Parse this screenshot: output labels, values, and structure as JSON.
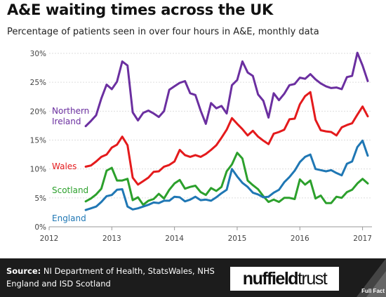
{
  "header": {
    "title": "A&E waiting times across the UK",
    "subtitle": "Percentage of patients seen in over four hours in A&E, monthly data"
  },
  "footer": {
    "source_label": "Source:",
    "source_text": "NI Department of Health, StatsWales, NHS England and ISD Scotland",
    "logo_part1": "nuffield",
    "logo_part2": "trust",
    "badge_text": "Full Fact"
  },
  "chart_data": {
    "type": "line",
    "title": "",
    "xlabel": "",
    "ylabel": "",
    "x_ticks": [
      "2012",
      "2013",
      "2014",
      "2015",
      "2016",
      "2017"
    ],
    "y_ticks": [
      "0%",
      "5%",
      "10%",
      "15%",
      "20%",
      "25%",
      "30%"
    ],
    "xlim": [
      2012.0,
      2017.15
    ],
    "ylim": [
      0,
      30
    ],
    "grid": "horizontal",
    "legend": "inline labels at left of lines",
    "series": [
      {
        "name": "Northern Ireland",
        "color": "#6b2fa0",
        "x": [
          2012.583,
          2012.667,
          2012.75,
          2012.833,
          2012.917,
          2013.0,
          2013.083,
          2013.167,
          2013.25,
          2013.333,
          2013.417,
          2013.5,
          2013.583,
          2013.667,
          2013.75,
          2013.833,
          2013.917,
          2014.0,
          2014.083,
          2014.167,
          2014.25,
          2014.333,
          2014.417,
          2014.5,
          2014.583,
          2014.667,
          2014.75,
          2014.833,
          2014.917,
          2015.0,
          2015.083,
          2015.167,
          2015.25,
          2015.333,
          2015.417,
          2015.5,
          2015.583,
          2015.667,
          2015.75,
          2015.833,
          2015.917,
          2016.0,
          2016.083,
          2016.167,
          2016.25,
          2016.333,
          2016.417,
          2016.5,
          2016.583,
          2016.667,
          2016.75,
          2016.833,
          2016.917,
          2017.0,
          2017.083
        ],
        "values": [
          17.4,
          18.3,
          19.3,
          22.2,
          24.6,
          23.8,
          25.1,
          28.6,
          27.9,
          19.8,
          18.4,
          19.7,
          20.1,
          19.6,
          19.0,
          20.0,
          23.7,
          24.3,
          24.9,
          25.2,
          23.1,
          22.8,
          20.1,
          17.8,
          21.4,
          20.5,
          20.9,
          19.6,
          24.5,
          25.4,
          28.6,
          26.7,
          26.1,
          22.9,
          21.8,
          18.9,
          23.1,
          21.9,
          23.0,
          24.5,
          24.7,
          25.8,
          25.6,
          26.4,
          25.5,
          24.8,
          24.3,
          24.0,
          24.1,
          23.8,
          25.9,
          26.1,
          30.1,
          27.9,
          25.2
        ]
      },
      {
        "name": "Wales",
        "color": "#e41a1c",
        "x": [
          2012.583,
          2012.667,
          2012.75,
          2012.833,
          2012.917,
          2013.0,
          2013.083,
          2013.167,
          2013.25,
          2013.333,
          2013.417,
          2013.5,
          2013.583,
          2013.667,
          2013.75,
          2013.833,
          2013.917,
          2014.0,
          2014.083,
          2014.167,
          2014.25,
          2014.333,
          2014.417,
          2014.5,
          2014.583,
          2014.667,
          2014.75,
          2014.833,
          2014.917,
          2015.0,
          2015.083,
          2015.167,
          2015.25,
          2015.333,
          2015.417,
          2015.5,
          2015.583,
          2015.667,
          2015.75,
          2015.833,
          2015.917,
          2016.0,
          2016.083,
          2016.167,
          2016.25,
          2016.333,
          2016.417,
          2016.5,
          2016.583,
          2016.667,
          2016.75,
          2016.833,
          2016.917,
          2017.0,
          2017.083
        ],
        "values": [
          10.4,
          10.6,
          11.3,
          12.1,
          12.5,
          13.7,
          14.2,
          15.6,
          14.1,
          8.5,
          7.3,
          7.9,
          8.5,
          9.5,
          9.6,
          10.4,
          10.7,
          11.3,
          13.3,
          12.4,
          12.1,
          12.4,
          12.1,
          12.6,
          13.3,
          14.1,
          15.4,
          16.8,
          18.8,
          17.8,
          16.9,
          15.8,
          16.6,
          15.6,
          14.9,
          14.3,
          16.1,
          16.4,
          16.8,
          18.6,
          18.7,
          21.2,
          22.6,
          23.3,
          18.5,
          16.7,
          16.5,
          16.4,
          15.8,
          17.2,
          17.6,
          17.9,
          19.4,
          20.8,
          19.1
        ]
      },
      {
        "name": "Scotland",
        "color": "#2ca02c",
        "x": [
          2012.583,
          2012.667,
          2012.75,
          2012.833,
          2012.917,
          2013.0,
          2013.083,
          2013.167,
          2013.25,
          2013.333,
          2013.417,
          2013.5,
          2013.583,
          2013.667,
          2013.75,
          2013.833,
          2013.917,
          2014.0,
          2014.083,
          2014.167,
          2014.25,
          2014.333,
          2014.417,
          2014.5,
          2014.583,
          2014.667,
          2014.75,
          2014.833,
          2014.917,
          2015.0,
          2015.083,
          2015.167,
          2015.25,
          2015.333,
          2015.417,
          2015.5,
          2015.583,
          2015.667,
          2015.75,
          2015.833,
          2015.917,
          2016.0,
          2016.083,
          2016.167,
          2016.25,
          2016.333,
          2016.417,
          2016.5,
          2016.583,
          2016.667,
          2016.75,
          2016.833,
          2016.917,
          2017.0,
          2017.083
        ],
        "values": [
          4.4,
          4.9,
          5.6,
          6.6,
          9.7,
          10.2,
          8.0,
          8.0,
          8.3,
          4.6,
          5.1,
          3.8,
          4.5,
          4.8,
          5.7,
          4.9,
          6.4,
          7.5,
          8.1,
          6.6,
          6.9,
          7.1,
          6.0,
          5.5,
          6.7,
          6.2,
          6.9,
          9.6,
          10.8,
          12.8,
          11.8,
          8.0,
          7.2,
          6.5,
          5.3,
          4.3,
          4.7,
          4.3,
          5.0,
          5.0,
          4.8,
          8.2,
          7.3,
          8.0,
          4.9,
          5.4,
          4.1,
          4.1,
          5.2,
          5.0,
          6.0,
          6.4,
          7.5,
          8.3,
          7.5
        ]
      },
      {
        "name": "England",
        "color": "#1f77b4",
        "x": [
          2012.583,
          2012.667,
          2012.75,
          2012.833,
          2012.917,
          2013.0,
          2013.083,
          2013.167,
          2013.25,
          2013.333,
          2013.417,
          2013.5,
          2013.583,
          2013.667,
          2013.75,
          2013.833,
          2013.917,
          2014.0,
          2014.083,
          2014.167,
          2014.25,
          2014.333,
          2014.417,
          2014.5,
          2014.583,
          2014.667,
          2014.75,
          2014.833,
          2014.917,
          2015.0,
          2015.083,
          2015.167,
          2015.25,
          2015.333,
          2015.417,
          2015.5,
          2015.583,
          2015.667,
          2015.75,
          2015.833,
          2015.917,
          2016.0,
          2016.083,
          2016.167,
          2016.25,
          2016.333,
          2016.417,
          2016.5,
          2016.583,
          2016.667,
          2016.75,
          2016.833,
          2016.917,
          2017.0,
          2017.083
        ],
        "values": [
          2.9,
          3.2,
          3.5,
          4.3,
          5.3,
          5.5,
          6.4,
          6.5,
          3.5,
          3.0,
          3.2,
          3.5,
          3.8,
          4.2,
          4.1,
          4.5,
          4.5,
          5.2,
          5.1,
          4.4,
          4.7,
          5.2,
          4.6,
          4.7,
          4.5,
          5.1,
          5.8,
          6.4,
          10.0,
          8.7,
          7.6,
          6.9,
          5.9,
          5.6,
          5.1,
          5.2,
          5.9,
          6.4,
          7.7,
          8.6,
          9.7,
          11.2,
          12.1,
          12.5,
          10.0,
          9.8,
          9.6,
          9.8,
          9.3,
          8.9,
          10.9,
          11.3,
          13.8,
          14.9,
          12.3
        ]
      }
    ],
    "label_positions_note": "labels drawn in series colors"
  }
}
